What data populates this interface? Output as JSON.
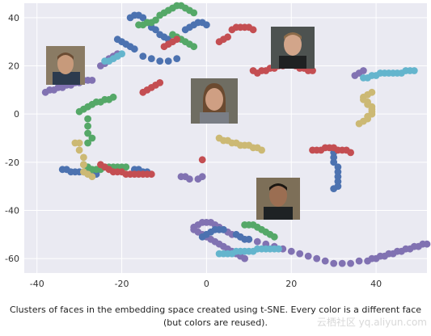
{
  "caption": "Clusters of faces in the embedding space created using t-SNE. Every color is a different face (but colors are reused).",
  "watermark": "云栖社区 yq.aliyun.com",
  "colors": {
    "plot_bg": "#eaeaf2",
    "grid": "#ffffff",
    "blue": "#4c72b0",
    "green": "#55a868",
    "red": "#c44e52",
    "purple": "#8172b2",
    "yellow": "#ccb974",
    "cyan": "#64b5cd"
  },
  "chart_data": {
    "type": "scatter",
    "title": "",
    "xlabel": "",
    "ylabel": "",
    "xlim": [
      -43,
      52
    ],
    "ylim": [
      -66,
      46
    ],
    "grid": true,
    "xticks": [
      -40,
      -20,
      0,
      20,
      40
    ],
    "yticks": [
      40,
      20,
      0,
      -20,
      -40,
      -60
    ],
    "series": [
      {
        "color": "purple",
        "points": [
          [
            -38,
            9
          ],
          [
            -37,
            10
          ],
          [
            -36,
            10
          ],
          [
            -35,
            11
          ],
          [
            -34,
            11
          ],
          [
            -33,
            12
          ],
          [
            -32,
            12
          ],
          [
            -31,
            13
          ],
          [
            -30,
            13
          ],
          [
            -29,
            14
          ],
          [
            -28,
            14
          ],
          [
            -27,
            14
          ],
          [
            -25,
            20
          ],
          [
            -24,
            21
          ],
          [
            -23,
            23
          ],
          [
            -22,
            24
          ],
          [
            -21,
            25
          ],
          [
            -6,
            -26
          ],
          [
            -5,
            -26
          ],
          [
            -4,
            -27
          ],
          [
            -2,
            -27
          ],
          [
            -1,
            -26
          ],
          [
            0,
            3
          ],
          [
            1,
            5
          ],
          [
            1,
            7
          ],
          [
            2,
            9
          ],
          [
            2,
            11
          ],
          [
            3,
            12
          ],
          [
            35,
            16
          ],
          [
            36,
            17
          ],
          [
            37,
            18
          ],
          [
            52,
            -54
          ],
          [
            51,
            -54
          ],
          [
            50,
            -55
          ],
          [
            49,
            -55
          ],
          [
            48,
            -56
          ],
          [
            47,
            -56
          ],
          [
            46,
            -57
          ],
          [
            45,
            -57
          ],
          [
            44,
            -58
          ],
          [
            43,
            -58
          ],
          [
            42,
            -59
          ],
          [
            41,
            -59
          ],
          [
            40,
            -60
          ],
          [
            39,
            -60
          ],
          [
            38,
            -61
          ],
          [
            36,
            -61
          ],
          [
            34,
            -62
          ],
          [
            32,
            -62
          ],
          [
            30,
            -62
          ],
          [
            28,
            -61
          ],
          [
            26,
            -60
          ],
          [
            24,
            -59
          ],
          [
            22,
            -58
          ],
          [
            20,
            -57
          ],
          [
            18,
            -56
          ],
          [
            16,
            -55
          ],
          [
            14,
            -54
          ],
          [
            12,
            -53
          ],
          [
            10,
            -52
          ],
          [
            8,
            -51
          ],
          [
            6,
            -50
          ],
          [
            5,
            -49
          ],
          [
            4,
            -48
          ],
          [
            3,
            -47
          ],
          [
            2,
            -46
          ],
          [
            1,
            -45
          ],
          [
            0,
            -45
          ],
          [
            -1,
            -45
          ],
          [
            -2,
            -46
          ],
          [
            -3,
            -47
          ],
          [
            -3,
            -48
          ],
          [
            -2,
            -49
          ],
          [
            -1,
            -50
          ],
          [
            0,
            -51
          ],
          [
            1,
            -52
          ],
          [
            2,
            -53
          ],
          [
            3,
            -54
          ],
          [
            4,
            -55
          ],
          [
            5,
            -56
          ],
          [
            6,
            -57
          ],
          [
            7,
            -58
          ],
          [
            8,
            -59
          ],
          [
            9,
            -60
          ]
        ]
      },
      {
        "color": "blue",
        "points": [
          [
            -34,
            -23
          ],
          [
            -33,
            -23
          ],
          [
            -32,
            -24
          ],
          [
            -31,
            -24
          ],
          [
            -30,
            -24
          ],
          [
            -29,
            -24
          ],
          [
            -28,
            -24
          ],
          [
            -27,
            -25
          ],
          [
            -26,
            -25
          ],
          [
            -17,
            -23
          ],
          [
            -16,
            -23
          ],
          [
            -15,
            -24
          ],
          [
            -14,
            -24
          ],
          [
            -21,
            31
          ],
          [
            -20,
            30
          ],
          [
            -19,
            29
          ],
          [
            -18,
            28
          ],
          [
            -17,
            27
          ],
          [
            -15,
            24
          ],
          [
            -13,
            23
          ],
          [
            -11,
            22
          ],
          [
            -9,
            22
          ],
          [
            -7,
            23
          ],
          [
            -18,
            40
          ],
          [
            -17,
            41
          ],
          [
            -16,
            41
          ],
          [
            -15,
            40
          ],
          [
            -14,
            38
          ],
          [
            -13,
            36
          ],
          [
            -12,
            35
          ],
          [
            -11,
            33
          ],
          [
            -10,
            32
          ],
          [
            -9,
            31
          ],
          [
            -5,
            35
          ],
          [
            -4,
            36
          ],
          [
            -3,
            37
          ],
          [
            -2,
            38
          ],
          [
            -1,
            38
          ],
          [
            0,
            37
          ],
          [
            30,
            -16
          ],
          [
            30,
            -18
          ],
          [
            30,
            -20
          ],
          [
            31,
            -22
          ],
          [
            31,
            -24
          ],
          [
            31,
            -26
          ],
          [
            31,
            -28
          ],
          [
            31,
            -30
          ],
          [
            30,
            -31
          ],
          [
            -1,
            -51
          ],
          [
            0,
            -50
          ],
          [
            1,
            -49
          ],
          [
            2,
            -48
          ],
          [
            3,
            -48
          ],
          [
            4,
            -48
          ],
          [
            7,
            -50
          ],
          [
            8,
            -51
          ],
          [
            9,
            -52
          ],
          [
            10,
            -52
          ]
        ]
      },
      {
        "color": "green",
        "points": [
          [
            -30,
            1
          ],
          [
            -29,
            2
          ],
          [
            -28,
            3
          ],
          [
            -27,
            4
          ],
          [
            -26,
            5
          ],
          [
            -25,
            5
          ],
          [
            -24,
            6
          ],
          [
            -23,
            6
          ],
          [
            -22,
            7
          ],
          [
            -28,
            -2
          ],
          [
            -28,
            -5
          ],
          [
            -28,
            -8
          ],
          [
            -27,
            -10
          ],
          [
            -28,
            -12
          ],
          [
            -29,
            -21
          ],
          [
            -28,
            -22
          ],
          [
            -27,
            -23
          ],
          [
            -26,
            -23
          ],
          [
            -25,
            -23
          ],
          [
            -24,
            -22
          ],
          [
            -23,
            -22
          ],
          [
            -22,
            -22
          ],
          [
            -21,
            -22
          ],
          [
            -20,
            -22
          ],
          [
            -19,
            -22
          ],
          [
            -16,
            37
          ],
          [
            -15,
            37
          ],
          [
            -14,
            38
          ],
          [
            -13,
            38
          ],
          [
            -12,
            39
          ],
          [
            -11,
            41
          ],
          [
            -10,
            42
          ],
          [
            -9,
            43
          ],
          [
            -8,
            44
          ],
          [
            -7,
            45
          ],
          [
            -6,
            45
          ],
          [
            -5,
            44
          ],
          [
            -4,
            43
          ],
          [
            -3,
            42
          ],
          [
            -8,
            33
          ],
          [
            -7,
            32
          ],
          [
            -6,
            31
          ],
          [
            -5,
            30
          ],
          [
            -4,
            29
          ],
          [
            -3,
            28
          ],
          [
            9,
            -46
          ],
          [
            10,
            -46
          ],
          [
            11,
            -46
          ],
          [
            12,
            -47
          ],
          [
            13,
            -48
          ],
          [
            14,
            -49
          ],
          [
            15,
            -50
          ],
          [
            16,
            -51
          ]
        ]
      },
      {
        "color": "red",
        "points": [
          [
            -25,
            -21
          ],
          [
            -24,
            -22
          ],
          [
            -23,
            -23
          ],
          [
            -22,
            -24
          ],
          [
            -21,
            -24
          ],
          [
            -20,
            -24
          ],
          [
            -19,
            -25
          ],
          [
            -18,
            -25
          ],
          [
            -17,
            -25
          ],
          [
            -16,
            -25
          ],
          [
            -15,
            -25
          ],
          [
            -14,
            -25
          ],
          [
            -13,
            -25
          ],
          [
            -15,
            9
          ],
          [
            -14,
            10
          ],
          [
            -13,
            11
          ],
          [
            -12,
            12
          ],
          [
            -11,
            13
          ],
          [
            -10,
            28
          ],
          [
            -9,
            29
          ],
          [
            -8,
            30
          ],
          [
            -7,
            31
          ],
          [
            3,
            30
          ],
          [
            4,
            31
          ],
          [
            5,
            32
          ],
          [
            6,
            35
          ],
          [
            7,
            36
          ],
          [
            8,
            36
          ],
          [
            9,
            36
          ],
          [
            10,
            36
          ],
          [
            11,
            35
          ],
          [
            11,
            18
          ],
          [
            12,
            17
          ],
          [
            13,
            18
          ],
          [
            14,
            18
          ],
          [
            15,
            19
          ],
          [
            16,
            19
          ],
          [
            17,
            20
          ],
          [
            18,
            20
          ],
          [
            19,
            21
          ],
          [
            20,
            21
          ],
          [
            21,
            20
          ],
          [
            22,
            19
          ],
          [
            23,
            19
          ],
          [
            24,
            18
          ],
          [
            25,
            18
          ],
          [
            25,
            -15
          ],
          [
            26,
            -15
          ],
          [
            27,
            -15
          ],
          [
            28,
            -14
          ],
          [
            29,
            -14
          ],
          [
            30,
            -14
          ],
          [
            31,
            -15
          ],
          [
            32,
            -15
          ],
          [
            33,
            -15
          ],
          [
            34,
            -16
          ],
          [
            -1,
            -19
          ]
        ]
      },
      {
        "color": "yellow",
        "points": [
          [
            -31,
            -12
          ],
          [
            -30,
            -12
          ],
          [
            -30,
            -15
          ],
          [
            -29,
            -18
          ],
          [
            -29,
            -21
          ],
          [
            -29,
            -24
          ],
          [
            -28,
            -25
          ],
          [
            -27,
            -26
          ],
          [
            3,
            -10
          ],
          [
            4,
            -11
          ],
          [
            5,
            -11
          ],
          [
            6,
            -12
          ],
          [
            7,
            -12
          ],
          [
            8,
            -13
          ],
          [
            9,
            -13
          ],
          [
            10,
            -13
          ],
          [
            11,
            -14
          ],
          [
            12,
            -14
          ],
          [
            13,
            -15
          ],
          [
            36,
            -4
          ],
          [
            37,
            -3
          ],
          [
            38,
            -2
          ],
          [
            38,
            -1
          ],
          [
            39,
            0
          ],
          [
            39,
            1
          ],
          [
            39,
            2
          ],
          [
            39,
            3
          ],
          [
            38,
            4
          ],
          [
            38,
            5
          ],
          [
            37,
            6
          ],
          [
            37,
            7
          ],
          [
            38,
            8
          ],
          [
            39,
            9
          ]
        ]
      },
      {
        "color": "cyan",
        "points": [
          [
            -24,
            22
          ],
          [
            -23,
            22
          ],
          [
            -22,
            23
          ],
          [
            -21,
            24
          ],
          [
            -20,
            25
          ],
          [
            37,
            15
          ],
          [
            38,
            15
          ],
          [
            39,
            16
          ],
          [
            40,
            16
          ],
          [
            41,
            17
          ],
          [
            42,
            17
          ],
          [
            43,
            17
          ],
          [
            44,
            17
          ],
          [
            45,
            17
          ],
          [
            46,
            17
          ],
          [
            47,
            18
          ],
          [
            48,
            18
          ],
          [
            49,
            18
          ],
          [
            3,
            -58
          ],
          [
            4,
            -58
          ],
          [
            5,
            -58
          ],
          [
            6,
            -58
          ],
          [
            7,
            -57
          ],
          [
            8,
            -57
          ],
          [
            9,
            -57
          ],
          [
            10,
            -57
          ],
          [
            11,
            -57
          ],
          [
            12,
            -56
          ],
          [
            13,
            -56
          ],
          [
            14,
            -56
          ],
          [
            15,
            -56
          ],
          [
            16,
            -56
          ],
          [
            17,
            -56
          ]
        ]
      }
    ]
  }
}
